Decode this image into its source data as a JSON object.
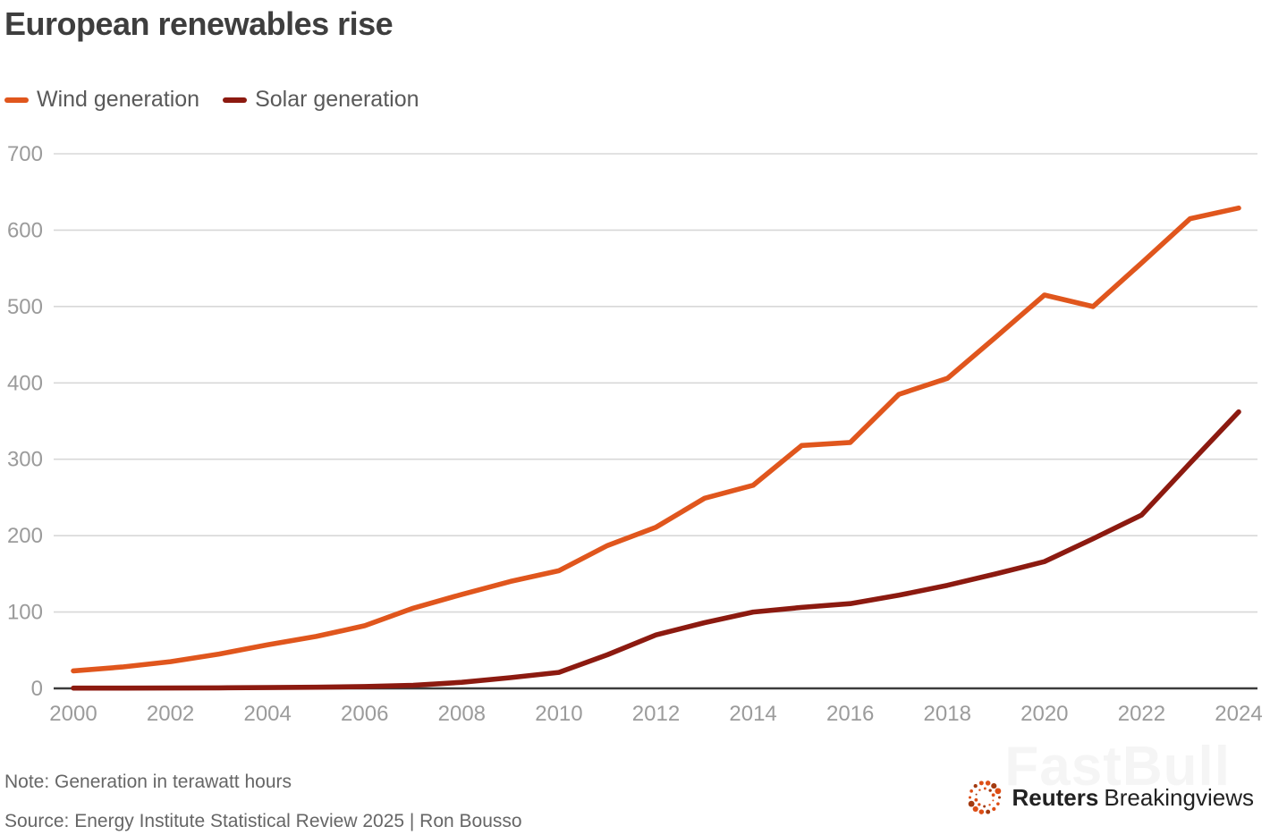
{
  "title": "European renewables rise",
  "legend": [
    {
      "label": "Wind generation",
      "color": "#E0561D"
    },
    {
      "label": "Solar generation",
      "color": "#8C1A10"
    }
  ],
  "chart_data": {
    "type": "line",
    "title": "European renewables rise",
    "unit": "terawatt hours",
    "x": [
      2000,
      2001,
      2002,
      2003,
      2004,
      2005,
      2006,
      2007,
      2008,
      2009,
      2010,
      2011,
      2012,
      2013,
      2014,
      2015,
      2016,
      2017,
      2018,
      2019,
      2020,
      2021,
      2022,
      2023,
      2024
    ],
    "series": [
      {
        "name": "Wind generation",
        "color": "#E0561D",
        "values": [
          23,
          28,
          35,
          45,
          57,
          68,
          82,
          105,
          123,
          140,
          154,
          187,
          211,
          249,
          266,
          318,
          322,
          385,
          406,
          460,
          515,
          500,
          557,
          615,
          629
        ]
      },
      {
        "name": "Solar generation",
        "color": "#8C1A10",
        "values": [
          0.3,
          0.4,
          0.5,
          0.7,
          1,
          1.5,
          2.5,
          4,
          8,
          14,
          21,
          44,
          70,
          86,
          100,
          106,
          111,
          122,
          135,
          150,
          166,
          196,
          227,
          295,
          362
        ]
      }
    ],
    "ylim": [
      0,
      700
    ],
    "yticks": [
      0,
      100,
      200,
      300,
      400,
      500,
      600,
      700
    ],
    "xticks": [
      2000,
      2002,
      2004,
      2006,
      2008,
      2010,
      2012,
      2014,
      2016,
      2018,
      2020,
      2022,
      2024
    ],
    "xlabel": "",
    "ylabel": "",
    "grid": "horizontal",
    "legend_position": "top-left"
  },
  "footer": {
    "note": "Note: Generation in terawatt hours",
    "source": "Source: Energy Institute Statistical Review 2025 | Ron Bousso"
  },
  "branding": {
    "watermark": "FastBull",
    "logo_bold": "Reuters",
    "logo_regular": "Breakingviews",
    "logo_icon": "reuters-dotted-circle"
  },
  "colors": {
    "wind": "#E0561D",
    "solar": "#8C1A10",
    "title_text": "#3E3E3E",
    "legend_text": "#595959",
    "tick_text": "#9B9B9B",
    "gridline": "#D8D8D8",
    "axis_line": "#3C3C3C",
    "footer_text": "#666666",
    "logo_dot": "#DD4E16"
  }
}
